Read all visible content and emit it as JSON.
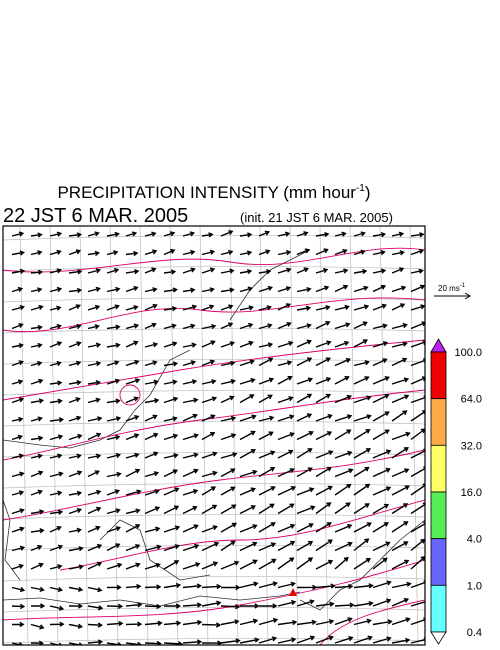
{
  "title": {
    "text": "PRECIPITATION INTENSITY (mm hour",
    "superscript": "-1",
    "close": ")"
  },
  "valid_time": "22 JST 6 MAR. 2005",
  "init_time": "(init. 21 JST 6 MAR. 2005)",
  "wind_scale": {
    "label": "20 ms",
    "superscript": "-1"
  },
  "colorbar": {
    "labels": [
      "100.0",
      "64.0",
      "32.0",
      "16.0",
      "4.0",
      "1.0",
      "0.4"
    ],
    "colors": [
      "#ee0000",
      "#ffaa44",
      "#ffff66",
      "#55ee55",
      "#6666ff",
      "#66ffff"
    ],
    "over_color": "#bb22ee",
    "under_color": "#ffffff"
  }
}
